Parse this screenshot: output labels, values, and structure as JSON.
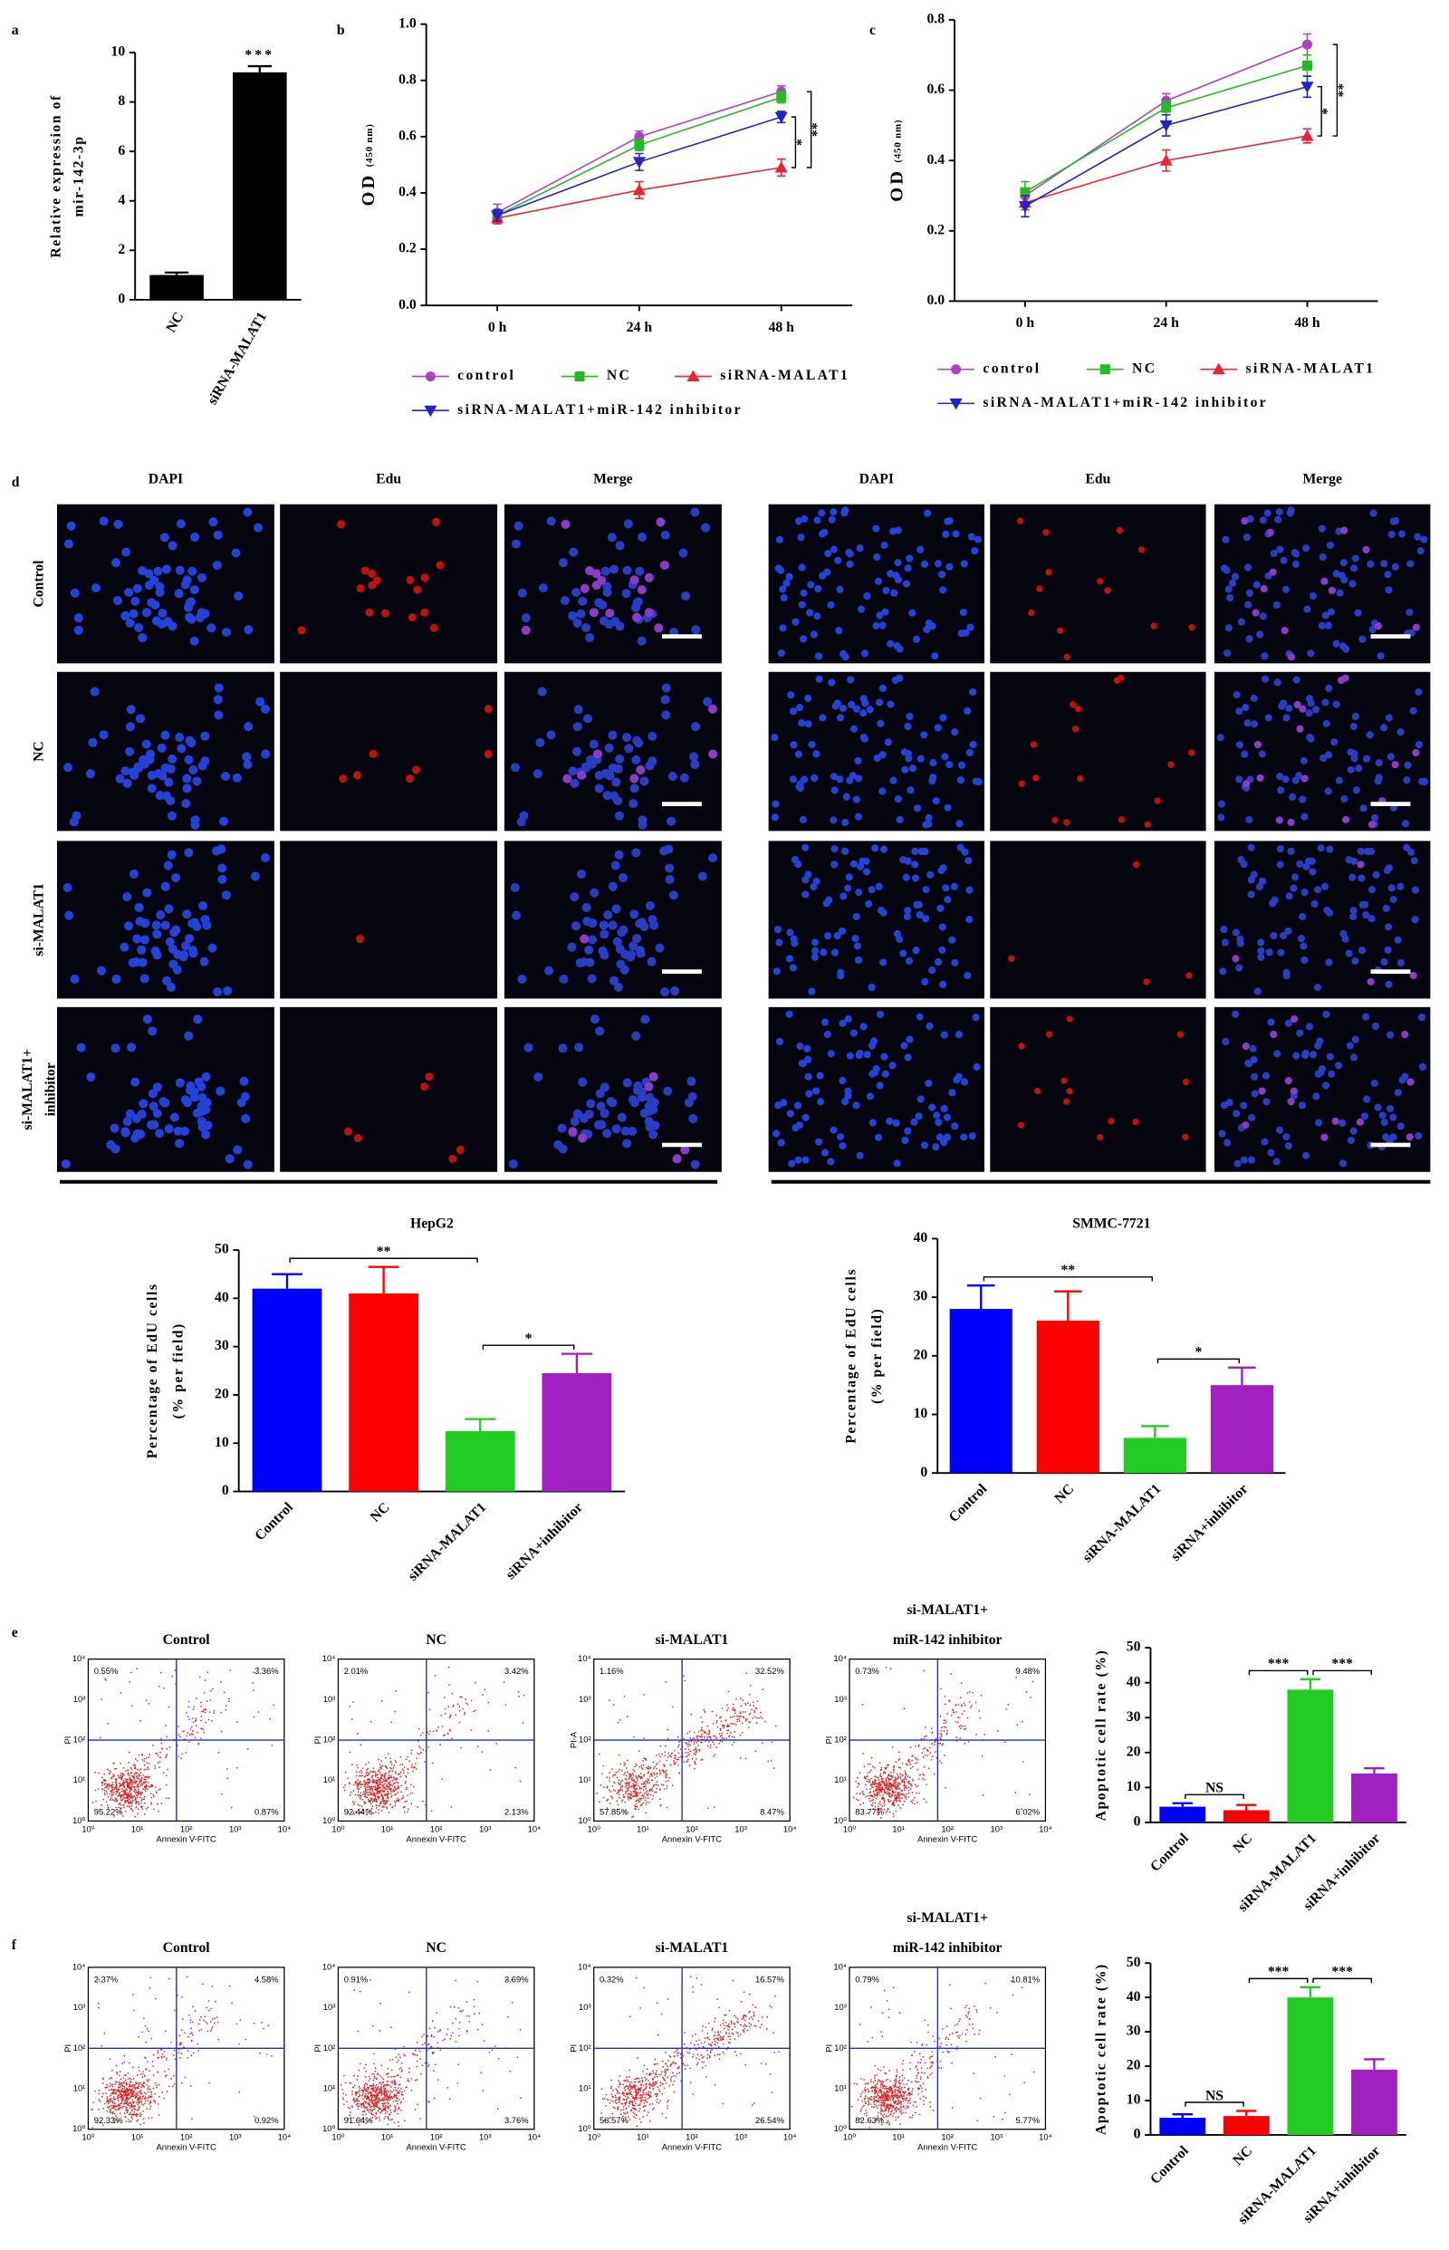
{
  "panel_labels": [
    "a",
    "b",
    "c",
    "d",
    "e",
    "f"
  ],
  "chart_data": [
    {
      "type": "bar",
      "y_label": [
        "Relative expression of",
        "mir-142-3p"
      ],
      "categories": [
        "NC",
        "siRNA-MALAT1"
      ],
      "values": [
        1,
        9.2
      ],
      "errors": [
        0.1,
        0.25
      ],
      "color": "#000000",
      "ylim": [
        0,
        10
      ],
      "yticks": [
        0,
        2,
        4,
        6,
        8,
        10
      ],
      "annotations": [
        {
          "text": "***",
          "category": "siRNA-MALAT1"
        }
      ]
    },
    {
      "type": "line",
      "y_label": "OD",
      "y_label_unit": "(450 nm)",
      "categories": [
        "0 h",
        "24 h",
        "48 h"
      ],
      "series": [
        {
          "name": "control",
          "color": "#b040c0",
          "marker": "circle",
          "values": [
            0.33,
            0.6,
            0.76
          ],
          "errors": [
            0.03,
            0.02,
            0.02
          ]
        },
        {
          "name": "NC",
          "color": "#22bb22",
          "marker": "square",
          "values": [
            0.32,
            0.57,
            0.74
          ],
          "errors": [
            0.02,
            0.02,
            0.02
          ]
        },
        {
          "name": "siRNA-MALAT1",
          "color": "#ee2233",
          "marker": "triangle-up",
          "values": [
            0.31,
            0.41,
            0.49
          ],
          "errors": [
            0.02,
            0.03,
            0.03
          ]
        },
        {
          "name": "siRNA-MALAT1+miR-142 inhibitor",
          "color": "#2222cc",
          "marker": "triangle-down",
          "values": [
            0.32,
            0.51,
            0.67
          ],
          "errors": [
            0.02,
            0.03,
            0.02
          ]
        }
      ],
      "ylim": [
        0,
        1
      ],
      "yticks": [
        {
          "value": 0,
          "label": "0.0"
        },
        0.2,
        0.4,
        0.6,
        0.8,
        {
          "value": 1,
          "label": "1.0"
        }
      ],
      "brackets": [
        {
          "label": "*",
          "between": [
            "siRNA-MALAT1",
            "siRNA-MALAT1+miR-142 inhibitor"
          ]
        },
        {
          "label": "**",
          "between": [
            "siRNA-MALAT1",
            "control"
          ]
        }
      ]
    },
    {
      "type": "line",
      "y_label": "OD",
      "y_label_unit": "(450 nm)",
      "categories": [
        "0 h",
        "24 h",
        "48 h"
      ],
      "series": [
        {
          "name": "control",
          "color": "#b040c0",
          "marker": "circle",
          "values": [
            0.3,
            0.57,
            0.73
          ],
          "errors": [
            0.02,
            0.02,
            0.03
          ]
        },
        {
          "name": "NC",
          "color": "#22bb22",
          "marker": "square",
          "values": [
            0.31,
            0.55,
            0.67
          ],
          "errors": [
            0.03,
            0.02,
            0.03
          ]
        },
        {
          "name": "siRNA-MALAT1",
          "color": "#ee2233",
          "marker": "triangle-up",
          "values": [
            0.28,
            0.4,
            0.47
          ],
          "errors": [
            0.02,
            0.03,
            0.02
          ]
        },
        {
          "name": "siRNA-MALAT1+miR-142 inhibitor",
          "color": "#2222cc",
          "marker": "triangle-down",
          "values": [
            0.27,
            0.5,
            0.61
          ],
          "errors": [
            0.03,
            0.03,
            0.03
          ]
        }
      ],
      "ylim": [
        0,
        0.8
      ],
      "yticks": [
        {
          "value": 0,
          "label": "0.0"
        },
        0.2,
        0.4,
        0.6,
        0.8
      ],
      "brackets": [
        {
          "label": "*",
          "between": [
            "siRNA-MALAT1",
            "siRNA-MALAT1+miR-142 inhibitor"
          ]
        },
        {
          "label": "**",
          "between": [
            "siRNA-MALAT1",
            "control"
          ]
        }
      ]
    },
    {
      "type": "bar",
      "title": "HepG2",
      "y_label": [
        "Percentage of EdU cells",
        "(% per field)"
      ],
      "categories": [
        "Control",
        "NC",
        "siRNA-MALAT1",
        "siRNA+inhibitor"
      ],
      "values": [
        42,
        41,
        12.5,
        24.5
      ],
      "errors": [
        3,
        5.5,
        2.5,
        4
      ],
      "colors": [
        "#0000ff",
        "#ff0000",
        "#22cc22",
        "#a020c0"
      ],
      "ylim": [
        0,
        50
      ],
      "yticks": [
        0,
        10,
        20,
        30,
        40,
        50
      ],
      "brackets": [
        {
          "label": "**",
          "between": [
            "Control",
            "siRNA-MALAT1"
          ]
        },
        {
          "label": "*",
          "between": [
            "siRNA-MALAT1",
            "siRNA+inhibitor"
          ]
        }
      ]
    },
    {
      "type": "bar",
      "title": "SMMC-7721",
      "y_label": [
        "Percentage of EdU cells",
        "(% per field)"
      ],
      "categories": [
        "Control",
        "NC",
        "siRNA-MALAT1",
        "siRNA+inhibitor"
      ],
      "values": [
        28,
        26,
        6,
        15
      ],
      "errors": [
        4,
        5,
        2,
        3
      ],
      "colors": [
        "#0000ff",
        "#ff0000",
        "#22cc22",
        "#a020c0"
      ],
      "ylim": [
        0,
        40
      ],
      "yticks": [
        0,
        10,
        20,
        30,
        40
      ],
      "brackets": [
        {
          "label": "**",
          "between": [
            "Control",
            "siRNA-MALAT1"
          ]
        },
        {
          "label": "*",
          "between": [
            "siRNA-MALAT1",
            "siRNA+inhibitor"
          ]
        }
      ]
    },
    {
      "type": "bar",
      "y_label": [
        "Apoptotic cell rate (%)"
      ],
      "categories": [
        "Control",
        "NC",
        "siRNA-MALAT1",
        "siRNA+inhibitor"
      ],
      "values": [
        4.5,
        3.5,
        38,
        14
      ],
      "errors": [
        1,
        1.5,
        3,
        1.5
      ],
      "colors": [
        "#0000ff",
        "#ff0000",
        "#22cc22",
        "#a020c0"
      ],
      "ylim": [
        0,
        50
      ],
      "yticks": [
        0,
        10,
        20,
        30,
        40,
        50
      ],
      "brackets": [
        {
          "label": "NS",
          "between": [
            "Control",
            "NC"
          ]
        },
        {
          "label": "***",
          "between": [
            "NC",
            "siRNA-MALAT1"
          ]
        },
        {
          "label": "***",
          "between": [
            "siRNA-MALAT1",
            "siRNA+inhibitor"
          ]
        }
      ]
    },
    {
      "type": "bar",
      "y_label": [
        "Apoptotic cell rate (%)"
      ],
      "categories": [
        "Control",
        "NC",
        "siRNA-MALAT1",
        "siRNA+inhibitor"
      ],
      "values": [
        5,
        5.5,
        40,
        19
      ],
      "errors": [
        1,
        1.5,
        3,
        3
      ],
      "colors": [
        "#0000ff",
        "#ff0000",
        "#22cc22",
        "#a020c0"
      ],
      "ylim": [
        0,
        50
      ],
      "yticks": [
        0,
        10,
        20,
        30,
        40,
        50
      ],
      "brackets": [
        {
          "label": "NS",
          "between": [
            "Control",
            "NC"
          ]
        },
        {
          "label": "***",
          "between": [
            "NC",
            "siRNA-MALAT1"
          ]
        },
        {
          "label": "***",
          "between": [
            "siRNA-MALAT1",
            "siRNA+inhibitor"
          ]
        }
      ]
    }
  ],
  "microscopy": {
    "columns": [
      "DAPI",
      "Edu",
      "Merge"
    ],
    "rows": [
      [
        "Control"
      ],
      [
        "NC"
      ],
      [
        "si-MALAT1"
      ],
      [
        "si-MALAT1+",
        "inhibitor"
      ]
    ]
  },
  "flow": {
    "x_label": "Annexin V-FITC",
    "axis_ticks": [
      "10⁰",
      "10¹",
      "10²",
      "10³",
      "10⁴"
    ],
    "panels": [
      [
        {
          "title": [
            "Control"
          ],
          "y_label": "PI",
          "quadrants": [
            "0.55%",
            "3.36%",
            "95.22%",
            "0.87%"
          ]
        },
        {
          "title": [
            "NC"
          ],
          "y_label": "PI",
          "quadrants": [
            "2.01%",
            "3.42%",
            "92.44%",
            "2.13%"
          ]
        },
        {
          "title": [
            "si-MALAT1"
          ],
          "y_label": "PI-A",
          "quadrants": [
            "1.16%",
            "32.52%",
            "57.85%",
            "8.47%"
          ]
        },
        {
          "title": [
            "si-MALAT1+",
            "miR-142 inhibitor"
          ],
          "y_label": "PI",
          "quadrants": [
            "0.73%",
            "9.48%",
            "83.77%",
            "6.02%"
          ]
        }
      ],
      [
        {
          "title": [
            "Control"
          ],
          "y_label": "PI",
          "quadrants": [
            "2.37%",
            "4.58%",
            "92.33%",
            "0.92%"
          ]
        },
        {
          "title": [
            "NC"
          ],
          "y_label": "PI",
          "quadrants": [
            "0.91%",
            "3.69%",
            "91.64%",
            "3.76%"
          ]
        },
        {
          "title": [
            "si-MALAT1"
          ],
          "y_label": "PI",
          "quadrants": [
            "0.32%",
            "16.57%",
            "56.57%",
            "26.54%"
          ]
        },
        {
          "title": [
            "si-MALAT1+",
            "miR-142 inhibitor"
          ],
          "y_label": "PI",
          "quadrants": [
            "0.79%",
            "10.81%",
            "82.63%",
            "5.77%"
          ]
        }
      ]
    ]
  }
}
